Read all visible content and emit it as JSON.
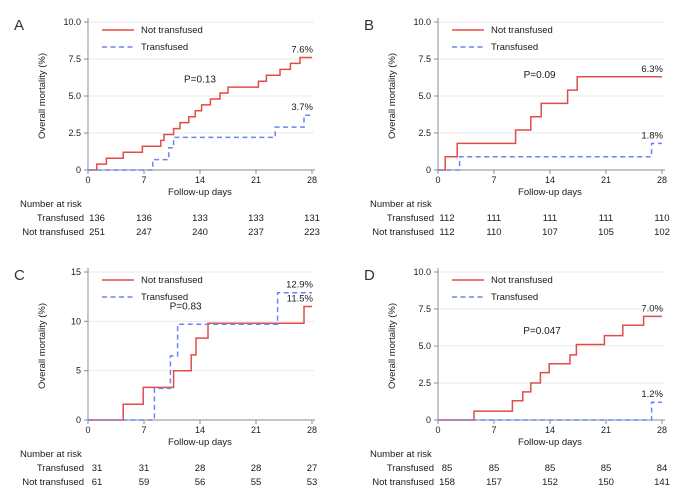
{
  "figure": {
    "background": "#ffffff",
    "xlabel": "Follow-up days",
    "ylabel": "Overall mortality (%)",
    "risk_table_title": "Number at risk",
    "legend": [
      "Not transfused",
      "Transfused"
    ]
  },
  "colors": {
    "not_transfused": "#e04d49",
    "transfused": "#6d84f0",
    "grid": "#e9e9e9",
    "axis": "#8c8c8c",
    "text": "#1a1a1a",
    "panel_letter": "#333333"
  },
  "chart_data": [
    {
      "panel": "A",
      "type": "line",
      "subtype": "kaplan-meier-step",
      "xlabel": "Follow-up days",
      "ylabel": "Overall mortality (%)",
      "xlim": [
        0,
        28
      ],
      "xticks": [
        0,
        7,
        14,
        21,
        28
      ],
      "ylim": [
        0,
        10
      ],
      "yticks": [
        0,
        2.5,
        5,
        7.5,
        10
      ],
      "ytick_labels": [
        "0",
        "2.5",
        "5.0",
        "7.5",
        "10.0"
      ],
      "grid": true,
      "legend_position": "top-left",
      "p_label": "P=0.13",
      "p_pos": [
        14,
        5.9
      ],
      "series": [
        {
          "name": "Not transfused",
          "color_key": "not_transfused",
          "style": "solid",
          "end_label": "7.6%",
          "points": [
            [
              0,
              0
            ],
            [
              1.1,
              0.4
            ],
            [
              2.3,
              0.8
            ],
            [
              4.4,
              1.2
            ],
            [
              6.8,
              1.6
            ],
            [
              9.1,
              2.0
            ],
            [
              9.5,
              2.4
            ],
            [
              10.7,
              2.8
            ],
            [
              11.5,
              3.2
            ],
            [
              12.6,
              3.6
            ],
            [
              13.4,
              4.0
            ],
            [
              14.2,
              4.4
            ],
            [
              15.3,
              4.8
            ],
            [
              16.5,
              5.2
            ],
            [
              17.5,
              5.6
            ],
            [
              21.3,
              6.0
            ],
            [
              22.3,
              6.4
            ],
            [
              24.0,
              6.8
            ],
            [
              25.3,
              7.2
            ],
            [
              26.5,
              7.6
            ],
            [
              28,
              7.6
            ]
          ]
        },
        {
          "name": "Transfused",
          "color_key": "transfused",
          "style": "dashed",
          "end_label": "3.7%",
          "points": [
            [
              0,
              0
            ],
            [
              8.1,
              0.7
            ],
            [
              10.1,
              1.5
            ],
            [
              10.7,
              2.2
            ],
            [
              23.4,
              2.9
            ],
            [
              27,
              3.7
            ],
            [
              28,
              3.7
            ]
          ]
        }
      ],
      "risk_table": {
        "title": "Number at risk",
        "rows": [
          {
            "label": "Transfused",
            "values": [
              "136",
              "136",
              "133",
              "133",
              "131"
            ]
          },
          {
            "label": "Not transfused",
            "values": [
              "251",
              "247",
              "240",
              "237",
              "223"
            ]
          }
        ]
      }
    },
    {
      "panel": "B",
      "type": "line",
      "subtype": "kaplan-meier-step",
      "xlabel": "Follow-up days",
      "ylabel": "Overall mortality (%)",
      "xlim": [
        0,
        28
      ],
      "xticks": [
        0,
        7,
        14,
        21,
        28
      ],
      "ylim": [
        0,
        10
      ],
      "yticks": [
        0,
        2.5,
        5,
        7.5,
        10
      ],
      "ytick_labels": [
        "0",
        "2.5",
        "5.0",
        "7.5",
        "10.0"
      ],
      "grid": true,
      "legend_position": "top-left",
      "p_label": "P=0.09",
      "p_pos": [
        12.7,
        6.2
      ],
      "series": [
        {
          "name": "Not transfused",
          "color_key": "not_transfused",
          "style": "solid",
          "end_label": "6.3%",
          "points": [
            [
              0,
              0
            ],
            [
              0.9,
              0.9
            ],
            [
              2.4,
              1.8
            ],
            [
              9.7,
              2.7
            ],
            [
              11.6,
              3.6
            ],
            [
              12.9,
              4.5
            ],
            [
              16.2,
              5.4
            ],
            [
              17.4,
              6.3
            ],
            [
              28,
              6.3
            ]
          ]
        },
        {
          "name": "Transfused",
          "color_key": "transfused",
          "style": "dashed",
          "end_label": "1.8%",
          "points": [
            [
              0,
              0
            ],
            [
              2.7,
              0.9
            ],
            [
              26.7,
              1.8
            ],
            [
              28,
              1.8
            ]
          ]
        }
      ],
      "risk_table": {
        "title": "Number at risk",
        "rows": [
          {
            "label": "Transfused",
            "values": [
              "112",
              "111",
              "111",
              "111",
              "110"
            ]
          },
          {
            "label": "Not transfused",
            "values": [
              "112",
              "110",
              "107",
              "105",
              "102"
            ]
          }
        ]
      }
    },
    {
      "panel": "C",
      "type": "line",
      "subtype": "kaplan-meier-step",
      "xlabel": "Follow-up days",
      "ylabel": "Overall mortality (%)",
      "xlim": [
        0,
        28
      ],
      "xticks": [
        0,
        7,
        14,
        21,
        28
      ],
      "ylim": [
        0,
        15
      ],
      "yticks": [
        0,
        5,
        10,
        15
      ],
      "ytick_labels": [
        "0",
        "5",
        "10",
        "15"
      ],
      "grid": true,
      "legend_position": "top-left",
      "p_label": "P=0.83",
      "p_pos": [
        12.2,
        11.2
      ],
      "series": [
        {
          "name": "Not transfused",
          "color_key": "not_transfused",
          "style": "solid",
          "end_label": "11.5%",
          "points": [
            [
              0,
              0
            ],
            [
              4.4,
              1.6
            ],
            [
              6.9,
              3.3
            ],
            [
              10.7,
              5.0
            ],
            [
              12.9,
              6.6
            ],
            [
              13.5,
              8.3
            ],
            [
              15.0,
              9.8
            ],
            [
              27.0,
              11.5
            ],
            [
              28,
              11.5
            ]
          ]
        },
        {
          "name": "Transfused",
          "color_key": "transfused",
          "style": "dashed",
          "end_label": "12.9%",
          "points": [
            [
              0,
              0
            ],
            [
              8.3,
              3.2
            ],
            [
              10.3,
              6.5
            ],
            [
              11.2,
              9.7
            ],
            [
              23.7,
              12.9
            ],
            [
              28,
              12.9
            ]
          ]
        }
      ],
      "risk_table": {
        "title": "Number at risk",
        "rows": [
          {
            "label": "Transfused",
            "values": [
              "31",
              "31",
              "28",
              "28",
              "27"
            ]
          },
          {
            "label": "Not transfused",
            "values": [
              "61",
              "59",
              "56",
              "55",
              "53"
            ]
          }
        ]
      }
    },
    {
      "panel": "D",
      "type": "line",
      "subtype": "kaplan-meier-step",
      "xlabel": "Follow-up days",
      "ylabel": "Overall mortality (%)",
      "xlim": [
        0,
        28
      ],
      "xticks": [
        0,
        7,
        14,
        21,
        28
      ],
      "ylim": [
        0,
        10
      ],
      "yticks": [
        0,
        2.5,
        5,
        7.5,
        10
      ],
      "ytick_labels": [
        "0",
        "2.5",
        "5.0",
        "7.5",
        "10.0"
      ],
      "grid": true,
      "legend_position": "top-left",
      "p_label": "P=0.047",
      "p_pos": [
        13,
        5.8
      ],
      "series": [
        {
          "name": "Not transfused",
          "color_key": "not_transfused",
          "style": "solid",
          "end_label": "7.0%",
          "points": [
            [
              0,
              0
            ],
            [
              4.5,
              0.6
            ],
            [
              9.3,
              1.3
            ],
            [
              10.6,
              1.9
            ],
            [
              11.6,
              2.5
            ],
            [
              12.8,
              3.2
            ],
            [
              13.9,
              3.8
            ],
            [
              16.5,
              4.4
            ],
            [
              17.3,
              5.1
            ],
            [
              20.8,
              5.7
            ],
            [
              23.1,
              6.4
            ],
            [
              25.7,
              7.0
            ],
            [
              28,
              7.0
            ]
          ]
        },
        {
          "name": "Transfused",
          "color_key": "transfused",
          "style": "dashed",
          "end_label": "1.2%",
          "points": [
            [
              0,
              0
            ],
            [
              26.7,
              1.2
            ],
            [
              28,
              1.2
            ]
          ]
        }
      ],
      "risk_table": {
        "title": "Number at risk",
        "rows": [
          {
            "label": "Transfused",
            "values": [
              "85",
              "85",
              "85",
              "85",
              "84"
            ]
          },
          {
            "label": "Not transfused",
            "values": [
              "158",
              "157",
              "152",
              "150",
              "141"
            ]
          }
        ]
      }
    }
  ]
}
